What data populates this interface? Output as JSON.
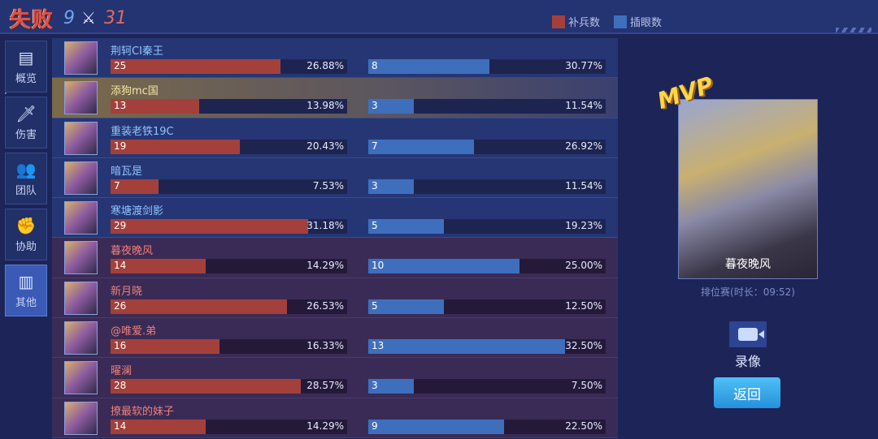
{
  "header": {
    "result": "失败",
    "team_kills": "9",
    "enemy_kills": "31",
    "legend": [
      {
        "label": "补兵数",
        "color": "#a3403c"
      },
      {
        "label": "插眼数",
        "color": "#3e6fbd"
      }
    ]
  },
  "sidebar": [
    {
      "label": "概览",
      "icon": "report-icon"
    },
    {
      "label": "伤害",
      "icon": "sword-icon"
    },
    {
      "label": "团队",
      "icon": "team-icon"
    },
    {
      "label": "协助",
      "icon": "fist-icon"
    },
    {
      "label": "其他",
      "icon": "bar-chart-icon",
      "active": true
    }
  ],
  "players": [
    {
      "name": "荆轲CI秦王",
      "cs": 25,
      "cs_pct": "26.88%",
      "wards": 8,
      "wards_pct": "30.77%",
      "team": "blue"
    },
    {
      "name": "添狗mc国",
      "cs": 13,
      "cs_pct": "13.98%",
      "wards": 3,
      "wards_pct": "11.54%",
      "team": "hl"
    },
    {
      "name": "重装老铁19C",
      "cs": 19,
      "cs_pct": "20.43%",
      "wards": 7,
      "wards_pct": "26.92%",
      "team": "blue"
    },
    {
      "name": "暗瓦是",
      "cs": 7,
      "cs_pct": "7.53%",
      "wards": 3,
      "wards_pct": "11.54%",
      "team": "blue"
    },
    {
      "name": "寒塘渡剑影",
      "cs": 29,
      "cs_pct": "31.18%",
      "wards": 5,
      "wards_pct": "19.23%",
      "team": "blue"
    },
    {
      "name": "暮夜晚风",
      "cs": 14,
      "cs_pct": "14.29%",
      "wards": 10,
      "wards_pct": "25.00%",
      "team": "red"
    },
    {
      "name": "新月晓",
      "cs": 26,
      "cs_pct": "26.53%",
      "wards": 5,
      "wards_pct": "12.50%",
      "team": "red"
    },
    {
      "name": "@唯爱.弟",
      "cs": 16,
      "cs_pct": "16.33%",
      "wards": 13,
      "wards_pct": "32.50%",
      "team": "red"
    },
    {
      "name": "曜澜",
      "cs": 28,
      "cs_pct": "28.57%",
      "wards": 3,
      "wards_pct": "7.50%",
      "team": "red"
    },
    {
      "name": "撩最软的妹子",
      "cs": 14,
      "cs_pct": "14.29%",
      "wards": 9,
      "wards_pct": "22.50%",
      "team": "red"
    }
  ],
  "mvp": {
    "badge": "MVP",
    "name": "暮夜晚风",
    "mode": "排位赛(时长：09:52)"
  },
  "actions": {
    "record": "录像",
    "back": "返回"
  },
  "colors": {
    "cs": "#a3403c",
    "wards": "#3e6fbd"
  }
}
